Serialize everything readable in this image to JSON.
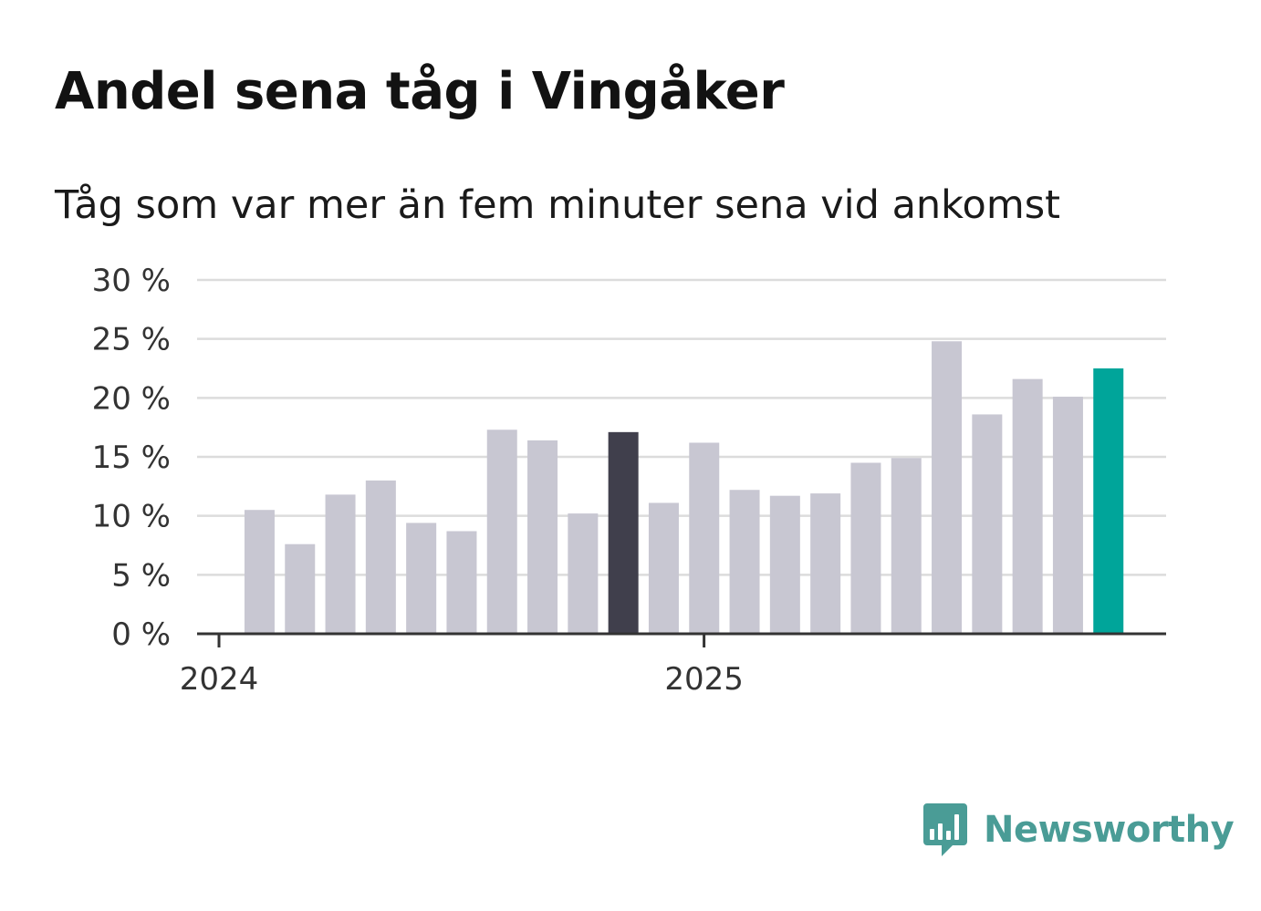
{
  "header": {
    "title": "Andel sena tåg i Vingåker",
    "subtitle": "Tåg som var mer än fem minuter sena vid ankomst"
  },
  "brand": {
    "name": "Newsworthy",
    "icon": "newsworthy-logo-icon",
    "color": "#4a9c96"
  },
  "colors": {
    "bar_default": "#c8c7d2",
    "bar_highlight": "#403f4c",
    "bar_latest": "#00a59a",
    "gridline": "#dcdcdc",
    "axis": "#333333"
  },
  "chart_data": {
    "type": "bar",
    "title": "Andel sena tåg i Vingåker",
    "subtitle": "Tåg som var mer än fem minuter sena vid ankomst",
    "xlabel": "",
    "ylabel": "",
    "x_tick_labels": [
      "2024",
      "2025"
    ],
    "y_ticks": [
      0,
      5,
      10,
      15,
      20,
      25,
      30
    ],
    "y_tick_labels": [
      "0 %",
      "5 %",
      "10 %",
      "15 %",
      "20 %",
      "25 %",
      "30 %"
    ],
    "ylim": [
      0,
      30
    ],
    "grid": true,
    "legend": false,
    "categories": [
      "2024-01",
      "2024-02",
      "2024-03",
      "2024-04",
      "2024-05",
      "2024-06",
      "2024-07",
      "2024-08",
      "2024-09",
      "2024-10",
      "2024-11",
      "2024-12",
      "2025-01",
      "2025-02",
      "2025-03",
      "2025-04",
      "2025-05",
      "2025-06",
      "2025-07",
      "2025-08",
      "2025-09",
      "2025-10",
      "2025-11",
      "2025-12"
    ],
    "values": [
      null,
      10.5,
      7.6,
      11.8,
      13.0,
      9.4,
      8.7,
      17.3,
      16.4,
      10.2,
      17.1,
      11.1,
      16.2,
      12.2,
      11.7,
      11.9,
      14.5,
      14.9,
      24.8,
      18.6,
      21.6,
      20.1,
      22.5,
      null
    ],
    "highlight": {
      "index": 10,
      "category": "2024-11"
    },
    "latest": {
      "index": 22,
      "category": "2025-11"
    }
  }
}
